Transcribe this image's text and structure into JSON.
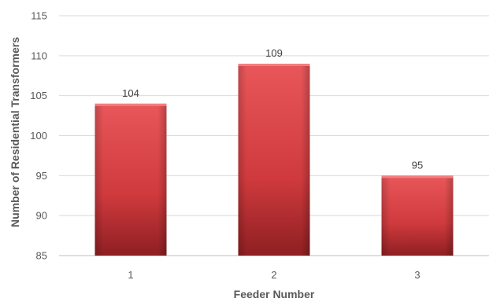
{
  "chart_data": {
    "type": "bar",
    "title": "",
    "xlabel": "Feeder  Number",
    "ylabel": "Number of Residential Transformers",
    "categories": [
      "1",
      "2",
      "3"
    ],
    "values": [
      104,
      109,
      95
    ],
    "data_labels": [
      "104",
      "109",
      "95"
    ],
    "ylim": [
      85,
      115
    ],
    "yticks": [
      85,
      90,
      95,
      100,
      105,
      110,
      115
    ],
    "grid": true,
    "legend": "none",
    "colors": {
      "bar_light": "#e8575a",
      "bar_mid": "#cf3a3d",
      "bar_dark": "#8e1f22",
      "bar_top": "#f27e80",
      "grid": "#d9d9d9",
      "axis": "#bfbfbf"
    }
  }
}
